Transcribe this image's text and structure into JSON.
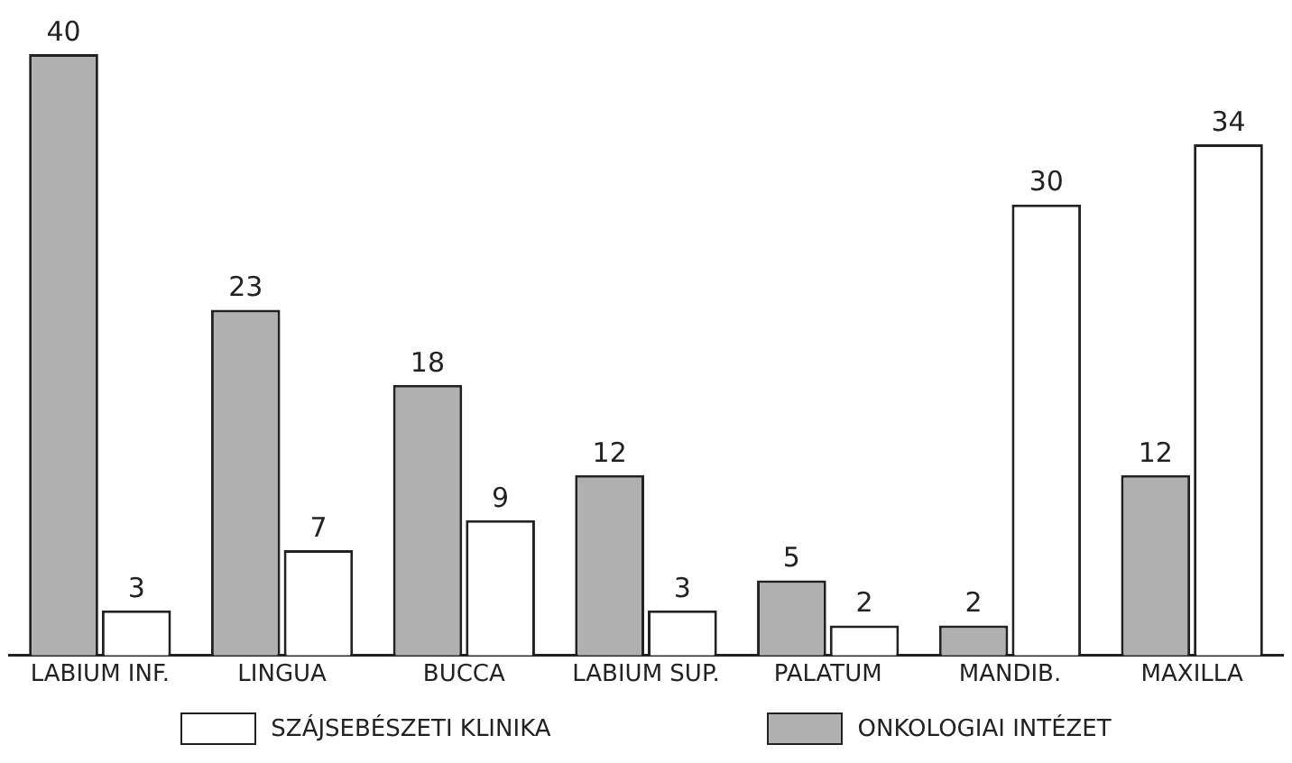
{
  "chart_data": {
    "type": "bar",
    "categories": [
      "LABIUM INF.",
      "LINGUA",
      "BUCCA",
      "LABIUM SUP.",
      "PALATUM",
      "MANDIB.",
      "MAXILLA"
    ],
    "series": [
      {
        "name": "ONKOLOGIAI INTÉZET",
        "color": "#b0b0b0",
        "values": [
          40,
          23,
          18,
          12,
          5,
          2,
          12
        ]
      },
      {
        "name": "SZÁJSEBÉSZETI KLINIKA",
        "color": "#ffffff",
        "values": [
          3,
          7,
          9,
          3,
          2,
          30,
          34
        ]
      }
    ],
    "data_labels": true,
    "legend": "bottom",
    "grid": false
  }
}
